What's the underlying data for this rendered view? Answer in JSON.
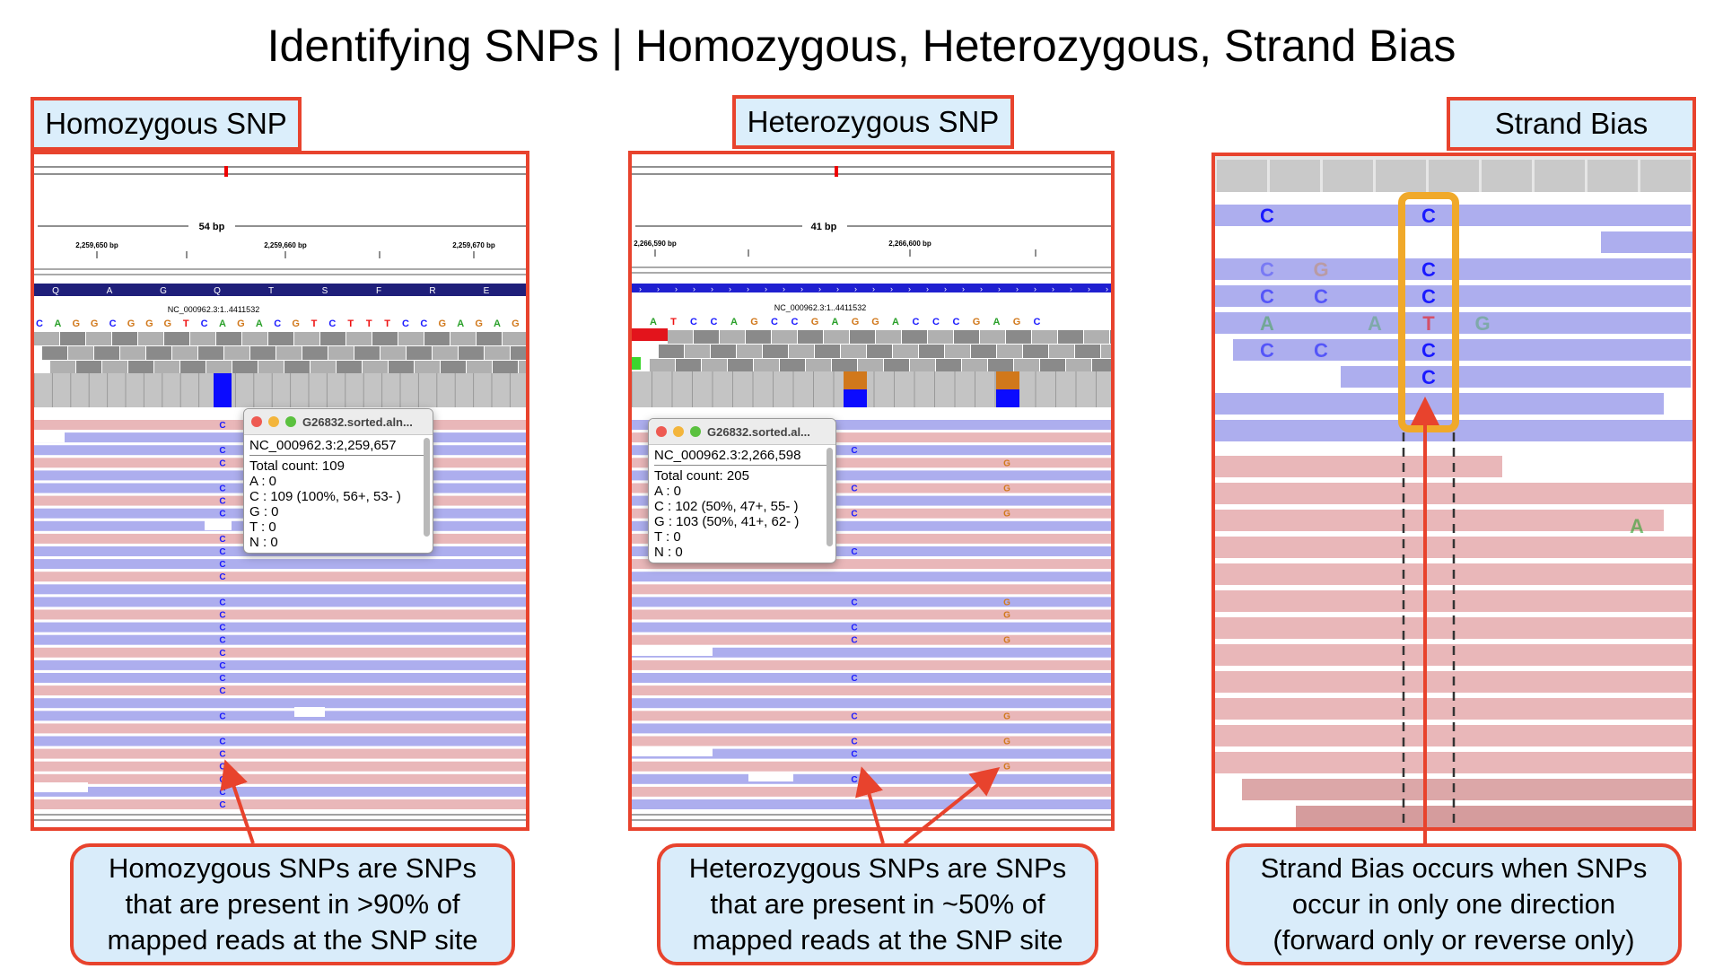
{
  "title": "Identifying SNPs | Homozygous, Heterozygous, Strand Bias",
  "panels": {
    "homozygous": {
      "label": "Homozygous SNP",
      "ruler_span": "54 bp",
      "ticks": [
        "2,259,650 bp",
        "2,259,660 bp",
        "2,259,670 bp"
      ],
      "contig": "NC_000962.3:1..4411532",
      "aa_top": [
        "Q",
        "A",
        "G",
        "Q",
        "T",
        "S",
        "F",
        "R",
        "E"
      ],
      "sequence": "CAGGCGGGTCAGACGTCTTTCCGAGAG",
      "popup": {
        "title": "G26832.sorted.aln...",
        "position": "NC_000962.3:2,259,657",
        "lines": [
          "Total count: 109",
          "A : 0",
          "C : 109 (100%, 56+, 53- )",
          "G : 0",
          "T : 0",
          "N : 0"
        ]
      },
      "callout": "Homozygous SNPs are SNPs that are present in >90% of mapped reads at the SNP site"
    },
    "heterozygous": {
      "label": "Heterozygous SNP",
      "ruler_span": "41 bp",
      "ticks": [
        "2,266,590 bp",
        "2,266,600 bp"
      ],
      "contig": "NC_000962.3:1..4411532",
      "sequence": "ATCCAGCCGAGGACCCGAGC",
      "popup": {
        "title": "G26832.sorted.al...",
        "position": "NC_000962.3:2,266,598",
        "lines": [
          "Total count: 205",
          "A : 0",
          "C : 102 (50%, 47+, 55- )",
          "G : 103 (50%, 41+, 62- )",
          "T : 0",
          "N : 0"
        ]
      },
      "callout": "Heterozygous SNPs are SNPs that are present in ~50% of mapped reads at the SNP site"
    },
    "strand_bias": {
      "label": "Strand Bias",
      "callout": "Strand Bias occurs when SNPs occur in only one direction (forward only or reverse only)"
    }
  },
  "colors": {
    "accent_red": "#e8432d",
    "callout_fill": "#d9ecfa",
    "forward_read": "#e9b7b9",
    "reverse_read": "#adaeee",
    "highlight_orange": "#f0a92a",
    "base_C": "#1a1aff",
    "base_G": "#d1781b"
  }
}
